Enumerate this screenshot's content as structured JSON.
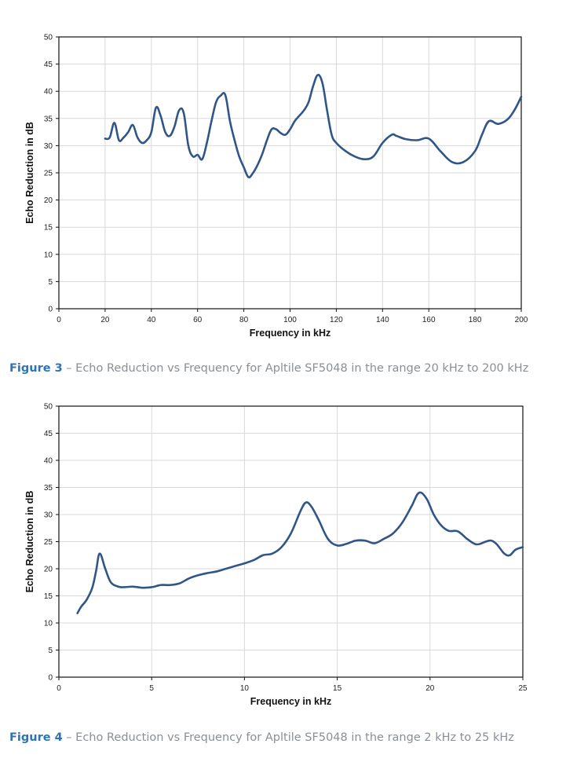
{
  "figures": [
    {
      "caption_label": "Figure 3",
      "caption_text": " – Echo Reduction vs Frequency for Apltile SF5048 in the range 20 kHz to 200 kHz"
    },
    {
      "caption_label": "Figure 4",
      "caption_text": " – Echo Reduction vs Frequency for Apltile SF5048 in the range 2 kHz to 25 kHz"
    }
  ],
  "colors": {
    "line": "#2f5687",
    "grid": "#d9d9d9",
    "frame": "#111111",
    "caption_label": "#2b74b8",
    "caption_text": "#8a8f96"
  },
  "chart_data": [
    {
      "type": "line",
      "xlabel": "Frequency in kHz",
      "ylabel": "Echo Reduction in dB",
      "xlim": [
        0,
        200
      ],
      "ylim": [
        0,
        50
      ],
      "xticks": [
        0,
        20,
        40,
        60,
        80,
        100,
        120,
        140,
        160,
        180,
        200
      ],
      "yticks": [
        0,
        5,
        10,
        15,
        20,
        25,
        30,
        35,
        40,
        45,
        50
      ],
      "grid": true,
      "series": [
        {
          "x": [
            20,
            22,
            24,
            26,
            28,
            30,
            32,
            34,
            36,
            38,
            40,
            42,
            44,
            46,
            48,
            50,
            52,
            54,
            56,
            58,
            60,
            62,
            64,
            66,
            68,
            70,
            72,
            74,
            76,
            78,
            80,
            82,
            84,
            86,
            88,
            90,
            92,
            94,
            96,
            98,
            100,
            102,
            104,
            106,
            108,
            110,
            112,
            114,
            116,
            118,
            120,
            124,
            128,
            132,
            136,
            140,
            144,
            146,
            150,
            155,
            160,
            165,
            170,
            175,
            180,
            183,
            186,
            190,
            194,
            197,
            200
          ],
          "y": [
            31.3,
            31.5,
            34.2,
            31.0,
            31.5,
            32.5,
            33.8,
            31.5,
            30.5,
            31.0,
            32.5,
            37.0,
            35.5,
            32.5,
            31.8,
            33.5,
            36.5,
            36.0,
            30.0,
            28.0,
            28.3,
            27.5,
            30.5,
            34.5,
            38.0,
            39.2,
            39.3,
            34.5,
            31.0,
            28.0,
            26.0,
            24.2,
            25.0,
            26.5,
            28.5,
            31.0,
            33.0,
            33.0,
            32.3,
            32.0,
            33.0,
            34.5,
            35.5,
            36.5,
            38.0,
            41.0,
            43.0,
            41.5,
            36.5,
            32.0,
            30.5,
            29.0,
            28.0,
            27.5,
            28.0,
            30.5,
            32.0,
            31.8,
            31.2,
            31.0,
            31.3,
            29.0,
            27.0,
            27.0,
            29.0,
            32.0,
            34.5,
            34.0,
            34.8,
            36.5,
            39.0
          ]
        }
      ]
    },
    {
      "type": "line",
      "xlabel": "Frequency in kHz",
      "ylabel": "Echo Reduction in dB",
      "xlim": [
        0,
        25
      ],
      "ylim": [
        0,
        50
      ],
      "xticks": [
        0,
        5,
        10,
        15,
        20,
        25
      ],
      "yticks": [
        0,
        5,
        10,
        15,
        20,
        25,
        30,
        35,
        40,
        45,
        50
      ],
      "grid": true,
      "series": [
        {
          "x": [
            1.0,
            1.2,
            1.5,
            1.8,
            2.0,
            2.2,
            2.5,
            2.8,
            3.2,
            3.5,
            4.0,
            4.5,
            5.0,
            5.5,
            6.0,
            6.5,
            7.0,
            7.5,
            8.0,
            8.5,
            9.0,
            9.5,
            10.0,
            10.5,
            11.0,
            11.5,
            12.0,
            12.5,
            13.0,
            13.3,
            13.6,
            14.0,
            14.5,
            15.0,
            15.5,
            16.0,
            16.5,
            17.0,
            17.5,
            18.0,
            18.5,
            19.0,
            19.4,
            19.8,
            20.2,
            20.6,
            21.0,
            21.5,
            22.0,
            22.5,
            23.0,
            23.3,
            23.6,
            24.0,
            24.3,
            24.6,
            25.0
          ],
          "y": [
            11.8,
            13.0,
            14.3,
            16.5,
            19.5,
            22.8,
            20.0,
            17.5,
            16.7,
            16.6,
            16.7,
            16.5,
            16.6,
            17.0,
            17.0,
            17.3,
            18.2,
            18.8,
            19.2,
            19.5,
            20.0,
            20.5,
            21.0,
            21.6,
            22.5,
            22.8,
            24.0,
            26.5,
            30.5,
            32.2,
            31.5,
            29.0,
            25.5,
            24.3,
            24.6,
            25.2,
            25.2,
            24.7,
            25.5,
            26.5,
            28.5,
            31.5,
            34.0,
            33.0,
            30.0,
            28.0,
            27.0,
            26.9,
            25.5,
            24.5,
            25.0,
            25.2,
            24.5,
            22.8,
            22.5,
            23.5,
            24.0
          ]
        }
      ]
    }
  ]
}
